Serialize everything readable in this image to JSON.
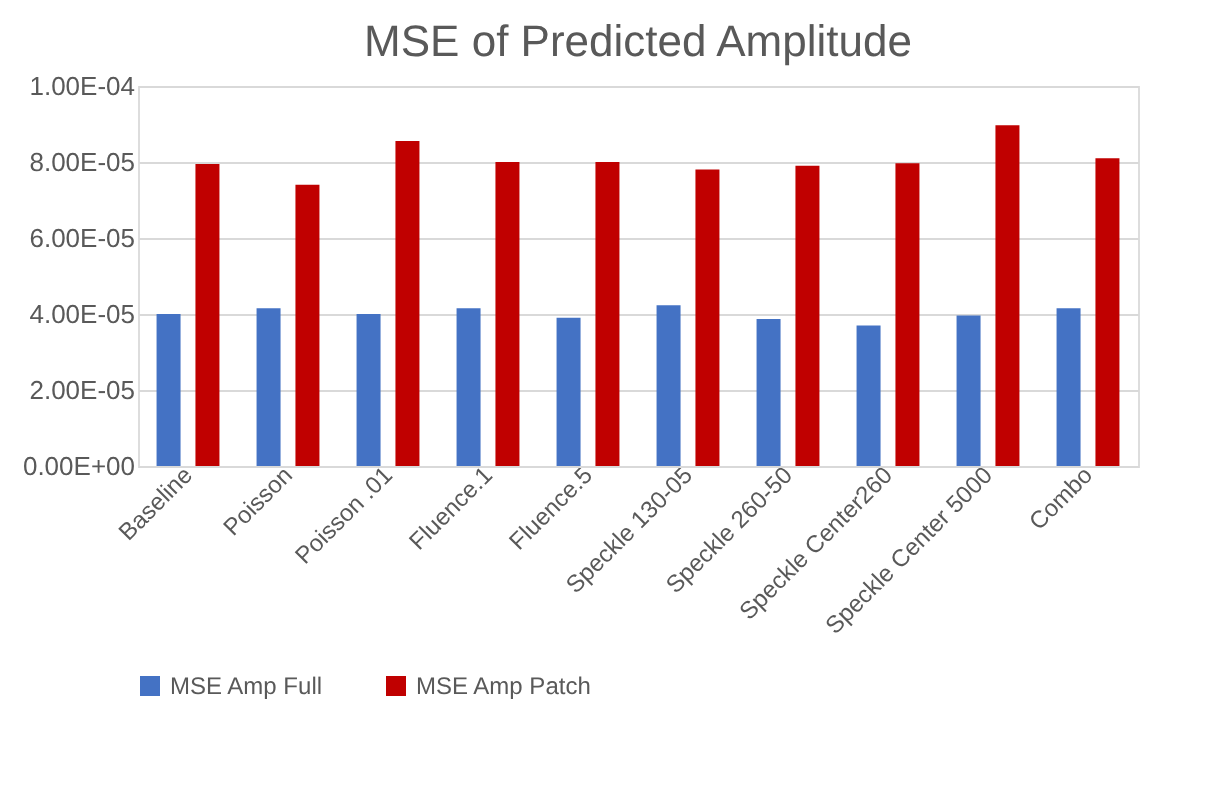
{
  "chart_data": {
    "type": "bar",
    "title": "MSE of Predicted Amplitude",
    "categories": [
      "Baseline",
      "Poisson",
      "Poisson .01",
      "Fluence.1",
      "Fluence.5",
      "Speckle 130-05",
      "Speckle 260-50",
      "Speckle Center260",
      "Speckle Center 5000",
      "Combo"
    ],
    "series": [
      {
        "name": "MSE Amp Full",
        "color": "#4472c4",
        "values": [
          4e-05,
          4.15e-05,
          4e-05,
          4.15e-05,
          3.9e-05,
          4.23e-05,
          3.87e-05,
          3.7e-05,
          3.96e-05,
          4.15e-05
        ]
      },
      {
        "name": "MSE  Amp Patch",
        "color": "#c00000",
        "values": [
          7.95e-05,
          7.4e-05,
          8.55e-05,
          8e-05,
          8e-05,
          7.8e-05,
          7.9e-05,
          7.97e-05,
          8.97e-05,
          8.1e-05
        ]
      }
    ],
    "ylim": [
      0,
      0.0001
    ],
    "yticks": [
      {
        "value": 0,
        "label": "0.00E+00"
      },
      {
        "value": 2e-05,
        "label": "2.00E-05"
      },
      {
        "value": 4e-05,
        "label": "4.00E-05"
      },
      {
        "value": 6e-05,
        "label": "6.00E-05"
      },
      {
        "value": 8e-05,
        "label": "8.00E-05"
      },
      {
        "value": 0.0001,
        "label": "1.00E-04"
      }
    ],
    "grid": "y",
    "legend": "bottom"
  }
}
